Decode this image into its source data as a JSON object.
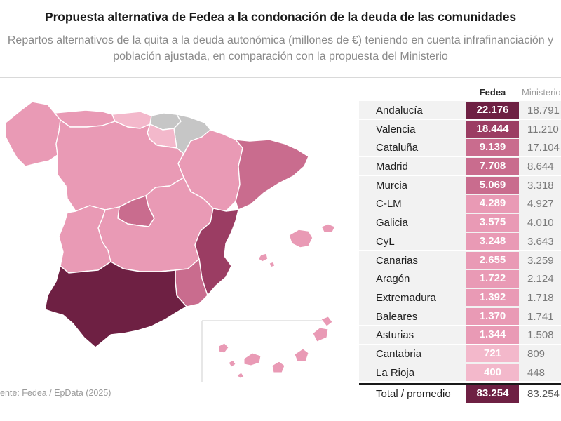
{
  "title": "Propuesta alternativa de Fedea a la condonación de la deuda de las comunidades",
  "subtitle": "Repartos alternativos de la quita a la deuda autonómica (millones de €) teniendo en cuenta infrafinanciación y población ajustada, en comparación con la propuesta del Ministerio",
  "source": "ente: Fedea / EpData (2025)",
  "colors": {
    "darkest": "#6e2043",
    "dark": "#9b3d63",
    "medium": "#c96c8e",
    "light": "#e99ab5",
    "lightest": "#f3b8cb",
    "grey": "#c6c6c6",
    "row_bg": "#f2f2f2"
  },
  "table": {
    "col_fedea": "Fedea",
    "col_ministerio": "Ministerio",
    "rows": [
      {
        "name": "Andalucía",
        "fedea": "22.176",
        "ministerio": "18.791",
        "fedea_value": 22176,
        "level": "darkest"
      },
      {
        "name": "Valencia",
        "fedea": "18.444",
        "ministerio": "11.210",
        "fedea_value": 18444,
        "level": "dark"
      },
      {
        "name": "Cataluña",
        "fedea": "9.139",
        "ministerio": "17.104",
        "fedea_value": 9139,
        "level": "medium"
      },
      {
        "name": "Madrid",
        "fedea": "7.708",
        "ministerio": "8.644",
        "fedea_value": 7708,
        "level": "medium"
      },
      {
        "name": "Murcia",
        "fedea": "5.069",
        "ministerio": "3.318",
        "fedea_value": 5069,
        "level": "medium"
      },
      {
        "name": "C-LM",
        "fedea": "4.289",
        "ministerio": "4.927",
        "fedea_value": 4289,
        "level": "light"
      },
      {
        "name": "Galicia",
        "fedea": "3.575",
        "ministerio": "4.010",
        "fedea_value": 3575,
        "level": "light"
      },
      {
        "name": "CyL",
        "fedea": "3.248",
        "ministerio": "3.643",
        "fedea_value": 3248,
        "level": "light"
      },
      {
        "name": "Canarias",
        "fedea": "2.655",
        "ministerio": "3.259",
        "fedea_value": 2655,
        "level": "light"
      },
      {
        "name": "Aragón",
        "fedea": "1.722",
        "ministerio": "2.124",
        "fedea_value": 1722,
        "level": "light"
      },
      {
        "name": "Extremadura",
        "fedea": "1.392",
        "ministerio": "1.718",
        "fedea_value": 1392,
        "level": "light"
      },
      {
        "name": "Baleares",
        "fedea": "1.370",
        "ministerio": "1.741",
        "fedea_value": 1370,
        "level": "light"
      },
      {
        "name": "Asturias",
        "fedea": "1.344",
        "ministerio": "1.508",
        "fedea_value": 1344,
        "level": "light"
      },
      {
        "name": "Cantabria",
        "fedea": "721",
        "ministerio": "809",
        "fedea_value": 721,
        "level": "lightest"
      },
      {
        "name": "La Rioja",
        "fedea": "400",
        "ministerio": "448",
        "fedea_value": 400,
        "level": "lightest"
      }
    ],
    "total": {
      "name": "Total / promedio",
      "fedea": "83.254",
      "ministerio": "83.254"
    }
  },
  "map": {
    "regions": [
      {
        "name": "galicia",
        "level": "light"
      },
      {
        "name": "asturias",
        "level": "light"
      },
      {
        "name": "cantabria",
        "level": "lightest"
      },
      {
        "name": "pais-vasco",
        "level": "grey"
      },
      {
        "name": "navarra",
        "level": "grey"
      },
      {
        "name": "la-rioja",
        "level": "lightest"
      },
      {
        "name": "aragon",
        "level": "light"
      },
      {
        "name": "cataluna",
        "level": "medium"
      },
      {
        "name": "castilla-y-leon",
        "level": "light"
      },
      {
        "name": "madrid",
        "level": "medium"
      },
      {
        "name": "castilla-la-mancha",
        "level": "light"
      },
      {
        "name": "valencia",
        "level": "dark"
      },
      {
        "name": "murcia",
        "level": "medium"
      },
      {
        "name": "extremadura",
        "level": "light"
      },
      {
        "name": "andalucia",
        "level": "darkest"
      },
      {
        "name": "baleares",
        "level": "light"
      },
      {
        "name": "canarias",
        "level": "light"
      }
    ]
  }
}
